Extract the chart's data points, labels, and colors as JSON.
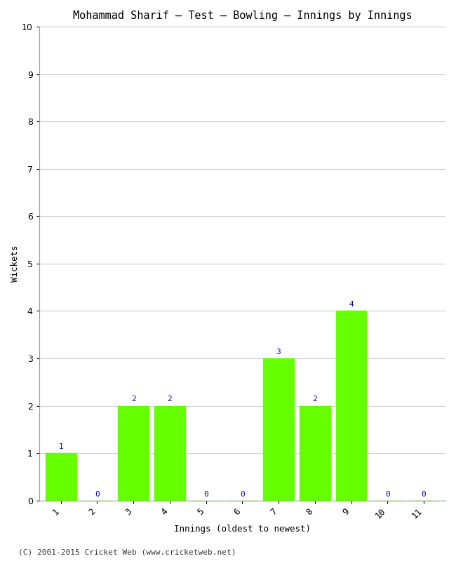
{
  "title": "Mohammad Sharif – Test – Bowling – Innings by Innings",
  "xlabel": "Innings (oldest to newest)",
  "ylabel": "Wickets",
  "categories": [
    "1",
    "2",
    "3",
    "4",
    "5",
    "6",
    "7",
    "8",
    "9",
    "10",
    "11"
  ],
  "values": [
    1,
    0,
    2,
    2,
    0,
    0,
    3,
    2,
    4,
    0,
    0
  ],
  "bar_color": "#66ff00",
  "label_color": "#0000cc",
  "ylim": [
    0,
    10
  ],
  "yticks": [
    0,
    1,
    2,
    3,
    4,
    5,
    6,
    7,
    8,
    9,
    10
  ],
  "grid_color": "#cccccc",
  "background_color": "#ffffff",
  "footer": "(C) 2001-2015 Cricket Web (www.cricketweb.net)",
  "title_fontsize": 11,
  "label_fontsize": 9,
  "tick_fontsize": 9,
  "annotation_fontsize": 8,
  "footer_fontsize": 8,
  "bar_width": 0.85
}
